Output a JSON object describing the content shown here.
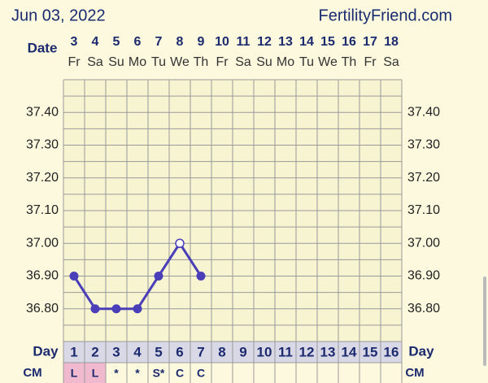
{
  "header": {
    "date": "Jun 03, 2022",
    "site": "FertilityFriend.com"
  },
  "chart_data": {
    "type": "line",
    "date_label": "Date",
    "categories": [
      "3",
      "4",
      "5",
      "6",
      "7",
      "8",
      "9",
      "10",
      "11",
      "12",
      "13",
      "14",
      "15",
      "16",
      "17",
      "18"
    ],
    "weekdays": [
      "Fr",
      "Sa",
      "Su",
      "Mo",
      "Tu",
      "We",
      "Th",
      "Fr",
      "Sa",
      "Su",
      "Mo",
      "Tu",
      "We",
      "Th",
      "Fr",
      "Sa"
    ],
    "values": [
      36.9,
      36.8,
      36.8,
      36.8,
      36.9,
      37.0,
      36.9,
      null,
      null,
      null,
      null,
      null,
      null,
      null,
      null,
      null
    ],
    "marker_styles": [
      "filled",
      "filled",
      "filled",
      "filled",
      "filled",
      "open",
      "filled",
      null,
      null,
      null,
      null,
      null,
      null,
      null,
      null,
      null
    ],
    "color": "#4a3fb8",
    "ylim": [
      36.7,
      37.5
    ],
    "yticks": [
      {
        "value": 36.8,
        "label": "36.80"
      },
      {
        "value": 36.9,
        "label": "36.90"
      },
      {
        "value": 37.0,
        "label": "37.00"
      },
      {
        "value": 37.1,
        "label": "37.10"
      },
      {
        "value": 37.2,
        "label": "37.20"
      },
      {
        "value": 37.3,
        "label": "37.30"
      },
      {
        "value": 37.4,
        "label": "37.40"
      }
    ],
    "grid": true,
    "day_label": "Day",
    "days": [
      1,
      2,
      3,
      4,
      5,
      6,
      7,
      8,
      9,
      10,
      11,
      12,
      13,
      14,
      15,
      16
    ],
    "cm_label": "CM",
    "cm": [
      "L",
      "L",
      "*",
      "*",
      "S*",
      "C",
      "C",
      null,
      null,
      null,
      null,
      null,
      null,
      null,
      null,
      null
    ],
    "cm_fills": [
      "#f0b9cd",
      "#f0b9cd",
      null,
      null,
      null,
      null,
      null,
      null,
      null,
      null,
      null,
      null,
      null,
      null,
      null,
      null
    ]
  }
}
